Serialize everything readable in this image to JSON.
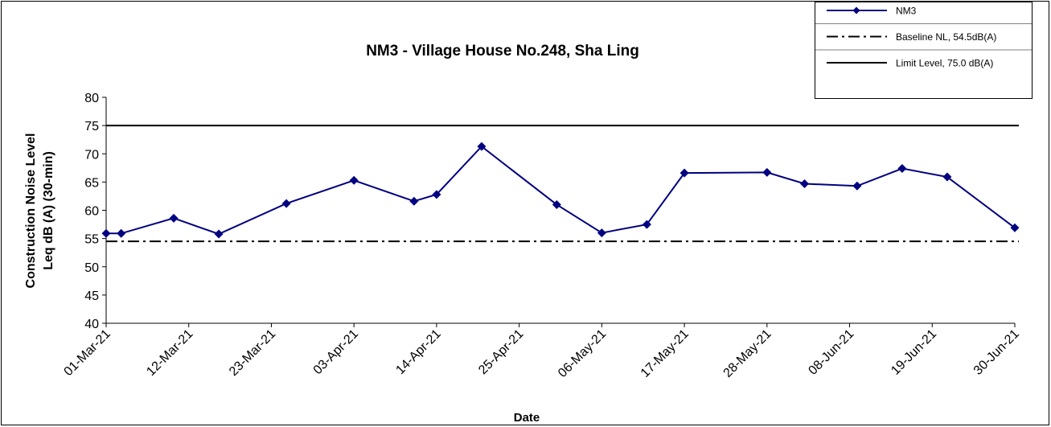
{
  "chart_data": {
    "type": "line",
    "title": "NM3 - Village House No.248, Sha Ling",
    "xlabel": "Date",
    "ylabel": [
      "Construction Noise Level",
      "Leq dB (A) (30-min)"
    ],
    "xlim": [
      "2021-03-01",
      "2021-06-30"
    ],
    "xticks": [
      {
        "value": "2021-03-01",
        "label": "01-Mar-21"
      },
      {
        "value": "2021-03-12",
        "label": "12-Mar-21"
      },
      {
        "value": "2021-03-23",
        "label": "23-Mar-21"
      },
      {
        "value": "2021-04-03",
        "label": "03-Apr-21"
      },
      {
        "value": "2021-04-14",
        "label": "14-Apr-21"
      },
      {
        "value": "2021-04-25",
        "label": "25-Apr-21"
      },
      {
        "value": "2021-05-06",
        "label": "06-May-21"
      },
      {
        "value": "2021-05-17",
        "label": "17-May-21"
      },
      {
        "value": "2021-05-28",
        "label": "28-May-21"
      },
      {
        "value": "2021-06-08",
        "label": "08-Jun-21"
      },
      {
        "value": "2021-06-19",
        "label": "19-Jun-21"
      },
      {
        "value": "2021-06-30",
        "label": "30-Jun-21"
      }
    ],
    "ylim": [
      40,
      80
    ],
    "yticks": [
      40,
      45,
      50,
      55,
      60,
      65,
      70,
      75,
      80
    ],
    "x": [
      "2021-03-01",
      "2021-03-03",
      "2021-03-10",
      "2021-03-16",
      "2021-03-25",
      "2021-04-03",
      "2021-04-11",
      "2021-04-14",
      "2021-04-20",
      "2021-04-30",
      "2021-05-06",
      "2021-05-12",
      "2021-05-17",
      "2021-05-28",
      "2021-06-02",
      "2021-06-09",
      "2021-06-15",
      "2021-06-21",
      "2021-06-30"
    ],
    "series": [
      {
        "name": "NM3",
        "color": "#000080",
        "values": [
          55.9,
          55.9,
          58.6,
          55.8,
          61.2,
          65.3,
          61.6,
          62.8,
          71.3,
          61.0,
          56.0,
          57.5,
          66.6,
          66.7,
          64.7,
          64.3,
          67.4,
          65.9,
          56.9
        ]
      }
    ],
    "reference_lines": [
      {
        "name": "Baseline NL,  54.5dB(A)",
        "value": 54.5,
        "style": "dashdot",
        "color": "#000000"
      },
      {
        "name": "Limit Level, 75.0 dB(A)",
        "value": 75.0,
        "style": "solid",
        "color": "#000000"
      }
    ],
    "legend": "top-right"
  }
}
